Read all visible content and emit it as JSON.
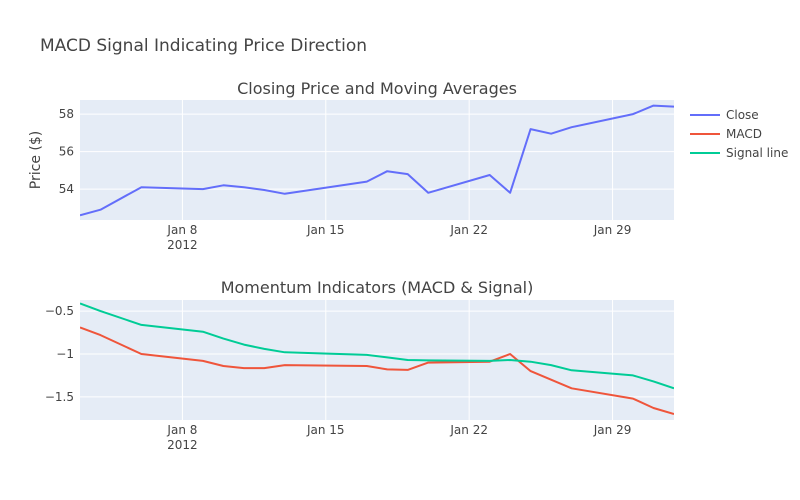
{
  "chart_data": {
    "type": "line",
    "title": "MACD Signal Indicating Price Direction",
    "legend_position": "right",
    "colors": {
      "Close": "#636efa",
      "MACD": "#ef553b",
      "Signal line": "#00cc96",
      "plot_bg": "#e5ecf6",
      "grid": "#ffffff",
      "text": "#444444"
    },
    "legend": [
      "Close",
      "MACD",
      "Signal line"
    ],
    "x_ticks": [
      {
        "date": "2012-01-08",
        "label": "Jan 8",
        "sublabel": "2012"
      },
      {
        "date": "2012-01-15",
        "label": "Jan 15",
        "sublabel": ""
      },
      {
        "date": "2012-01-22",
        "label": "Jan 22",
        "sublabel": ""
      },
      {
        "date": "2012-01-29",
        "label": "Jan 29",
        "sublabel": ""
      }
    ],
    "x_range": [
      "2012-01-03",
      "2012-01-31"
    ],
    "subplots": [
      {
        "title": "Closing Price and Moving Averages",
        "ylabel": "Price ($)",
        "ylim": [
          52.35,
          58.75
        ],
        "y_ticks": [
          54,
          56,
          58
        ],
        "grid": true,
        "series": [
          {
            "name": "Close",
            "x": [
              "2012-01-03",
              "2012-01-04",
              "2012-01-06",
              "2012-01-09",
              "2012-01-10",
              "2012-01-11",
              "2012-01-12",
              "2012-01-13",
              "2012-01-17",
              "2012-01-18",
              "2012-01-19",
              "2012-01-20",
              "2012-01-23",
              "2012-01-24",
              "2012-01-25",
              "2012-01-26",
              "2012-01-27",
              "2012-01-30",
              "2012-01-31",
              "2012-02-01"
            ],
            "y": [
              52.6,
              52.9,
              54.1,
              54.0,
              54.2,
              54.1,
              53.95,
              53.75,
              54.4,
              54.95,
              54.8,
              53.8,
              54.75,
              53.8,
              57.2,
              56.95,
              57.3,
              58.0,
              58.45,
              58.4
            ]
          }
        ]
      },
      {
        "title": "Momentum Indicators (MACD & Signal)",
        "ylabel": "",
        "ylim": [
          -1.77,
          -0.37
        ],
        "y_ticks": [
          -0.5,
          -1,
          -1.5
        ],
        "y_tick_labels": [
          "−0.5",
          "−1",
          "−1.5"
        ],
        "grid": true,
        "series": [
          {
            "name": "MACD",
            "x": [
              "2012-01-03",
              "2012-01-04",
              "2012-01-06",
              "2012-01-09",
              "2012-01-10",
              "2012-01-11",
              "2012-01-12",
              "2012-01-13",
              "2012-01-17",
              "2012-01-18",
              "2012-01-19",
              "2012-01-20",
              "2012-01-23",
              "2012-01-24",
              "2012-01-25",
              "2012-01-26",
              "2012-01-27",
              "2012-01-30",
              "2012-01-31",
              "2012-02-01"
            ],
            "y": [
              -0.69,
              -0.78,
              -1.0,
              -1.08,
              -1.14,
              -1.165,
              -1.165,
              -1.13,
              -1.14,
              -1.18,
              -1.185,
              -1.1,
              -1.09,
              -1.0,
              -1.2,
              -1.3,
              -1.4,
              -1.52,
              -1.63,
              -1.7
            ]
          },
          {
            "name": "Signal line",
            "x": [
              "2012-01-03",
              "2012-01-04",
              "2012-01-06",
              "2012-01-09",
              "2012-01-10",
              "2012-01-11",
              "2012-01-12",
              "2012-01-13",
              "2012-01-17",
              "2012-01-18",
              "2012-01-19",
              "2012-01-20",
              "2012-01-23",
              "2012-01-24",
              "2012-01-25",
              "2012-01-26",
              "2012-01-27",
              "2012-01-30",
              "2012-01-31",
              "2012-02-01"
            ],
            "y": [
              -0.41,
              -0.5,
              -0.66,
              -0.74,
              -0.82,
              -0.89,
              -0.94,
              -0.98,
              -1.01,
              -1.04,
              -1.07,
              -1.075,
              -1.08,
              -1.07,
              -1.09,
              -1.13,
              -1.19,
              -1.25,
              -1.32,
              -1.4
            ]
          }
        ]
      }
    ]
  }
}
